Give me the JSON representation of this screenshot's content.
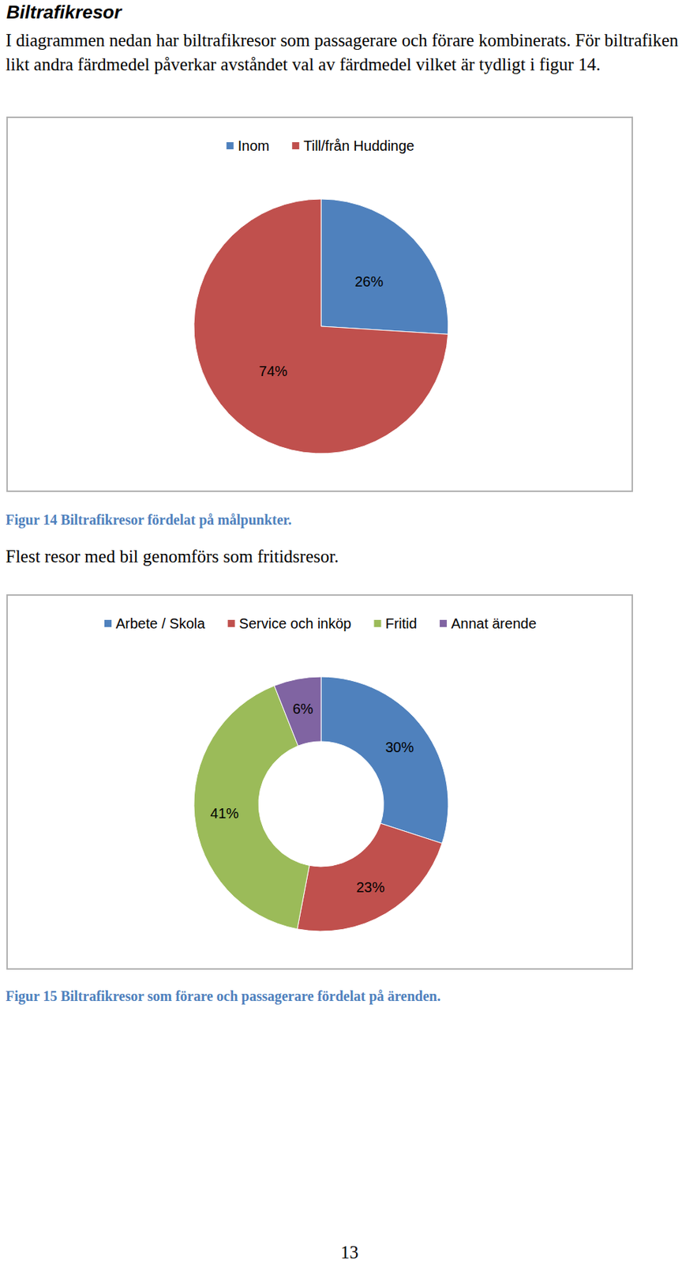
{
  "heading": "Biltrafikresor",
  "text_1": "I diagrammen nedan har biltrafikresor som passagerare och förare kombinerats. För biltrafiken likt andra färdmedel påverkar avståndet val av färdmedel vilket är tydligt i figur 14.",
  "chart_data": [
    {
      "type": "pie",
      "categories": [
        "Inom",
        "Till/från Huddinge"
      ],
      "values": [
        26,
        74
      ],
      "value_labels": [
        "26%",
        "74%"
      ],
      "colors": [
        "#4F81BD",
        "#C0504D"
      ],
      "data_labels": true,
      "legend": "top"
    },
    {
      "type": "donut",
      "categories": [
        "Arbete / Skola",
        "Service och inköp",
        "Fritid",
        "Annat ärende"
      ],
      "values": [
        30,
        23,
        41,
        6
      ],
      "value_labels": [
        "30%",
        "23%",
        "41%",
        "6%"
      ],
      "colors": [
        "#4F81BD",
        "#C0504D",
        "#9BBB59",
        "#8064A2"
      ],
      "data_labels": true,
      "legend": "top"
    }
  ],
  "captions": [
    "Figur 14 Biltrafikresor fördelat på målpunkter.",
    "Figur 15 Biltrafikresor som förare och passagerare fördelat på ärenden."
  ],
  "text_2": "Flest resor med bil genomförs som fritidsresor.",
  "page_number": 13
}
